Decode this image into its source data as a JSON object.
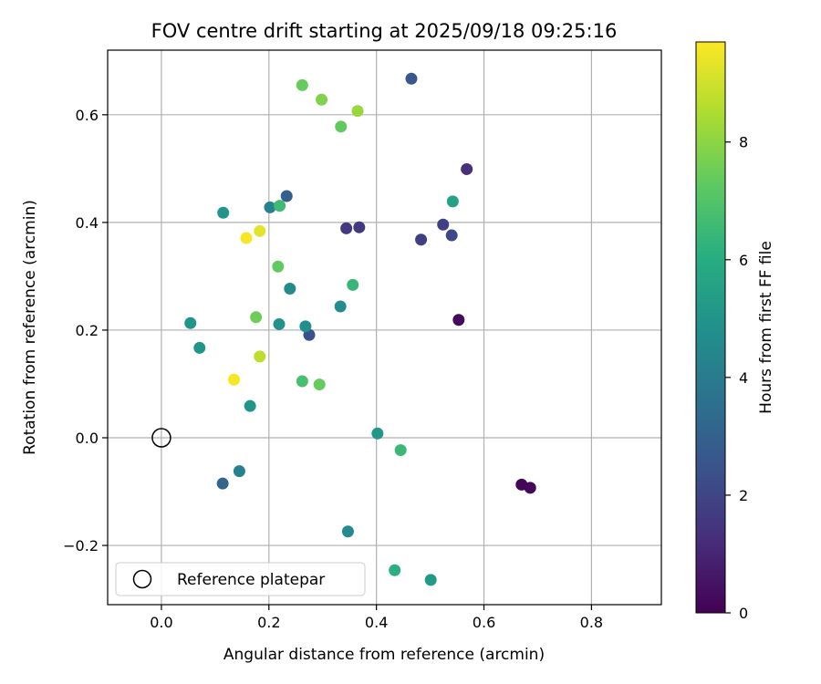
{
  "chart_data": {
    "type": "scatter",
    "title": "FOV centre drift starting at 2025/09/18 09:25:16",
    "xlabel": "Angular distance from reference (arcmin)",
    "ylabel": "Rotation from reference (arcmin)",
    "xlim": [
      -0.1,
      0.93
    ],
    "ylim": [
      -0.31,
      0.72
    ],
    "xticks": [
      0.0,
      0.2,
      0.4,
      0.6,
      0.8
    ],
    "xtick_labels": [
      "0.0",
      "0.2",
      "0.4",
      "0.6",
      "0.8"
    ],
    "yticks": [
      -0.2,
      0.0,
      0.2,
      0.4,
      0.6
    ],
    "ytick_labels": [
      "−0.2",
      "0.0",
      "0.2",
      "0.4",
      "0.6"
    ],
    "grid": true,
    "colormap": "viridis",
    "colorbar": {
      "label": "Hours from first FF file",
      "range": [
        0,
        9.7
      ],
      "ticks": [
        0,
        2,
        4,
        6,
        8
      ],
      "tick_labels": [
        "0",
        "2",
        "4",
        "6",
        "8"
      ]
    },
    "legend": {
      "label": "Reference platepar",
      "location": "lower-left"
    },
    "reference_point": {
      "x": 0.0,
      "y": 0.0
    },
    "points": [
      {
        "x": 0.67,
        "y": -0.087,
        "hours": 0.15
      },
      {
        "x": 0.686,
        "y": -0.093,
        "hours": 0.2
      },
      {
        "x": 0.553,
        "y": 0.219,
        "hours": 0.3
      },
      {
        "x": 0.568,
        "y": 0.499,
        "hours": 1.3
      },
      {
        "x": 0.344,
        "y": 0.389,
        "hours": 1.6
      },
      {
        "x": 0.368,
        "y": 0.391,
        "hours": 1.6
      },
      {
        "x": 0.483,
        "y": 0.368,
        "hours": 1.8
      },
      {
        "x": 0.524,
        "y": 0.396,
        "hours": 1.8
      },
      {
        "x": 0.54,
        "y": 0.376,
        "hours": 2.1
      },
      {
        "x": 0.275,
        "y": 0.191,
        "hours": 2.4
      },
      {
        "x": 0.465,
        "y": 0.667,
        "hours": 2.6
      },
      {
        "x": 0.233,
        "y": 0.449,
        "hours": 3.0
      },
      {
        "x": 0.114,
        "y": -0.085,
        "hours": 3.1
      },
      {
        "x": 0.145,
        "y": -0.062,
        "hours": 4.2
      },
      {
        "x": 0.347,
        "y": -0.174,
        "hours": 4.6
      },
      {
        "x": 0.202,
        "y": 0.428,
        "hours": 4.3
      },
      {
        "x": 0.239,
        "y": 0.277,
        "hours": 4.6
      },
      {
        "x": 0.333,
        "y": 0.244,
        "hours": 4.7
      },
      {
        "x": 0.268,
        "y": 0.207,
        "hours": 4.8
      },
      {
        "x": 0.219,
        "y": 0.211,
        "hours": 4.9
      },
      {
        "x": 0.115,
        "y": 0.418,
        "hours": 5.0
      },
      {
        "x": 0.054,
        "y": 0.213,
        "hours": 5.0
      },
      {
        "x": 0.071,
        "y": 0.167,
        "hours": 5.0
      },
      {
        "x": 0.165,
        "y": 0.059,
        "hours": 5.0
      },
      {
        "x": 0.402,
        "y": 0.008,
        "hours": 5.1
      },
      {
        "x": 0.501,
        "y": -0.264,
        "hours": 5.2
      },
      {
        "x": 0.542,
        "y": 0.439,
        "hours": 5.5
      },
      {
        "x": 0.434,
        "y": -0.246,
        "hours": 6.1
      },
      {
        "x": 0.356,
        "y": 0.284,
        "hours": 6.4
      },
      {
        "x": 0.445,
        "y": -0.023,
        "hours": 6.5
      },
      {
        "x": 0.22,
        "y": 0.431,
        "hours": 6.6
      },
      {
        "x": 0.262,
        "y": 0.105,
        "hours": 6.8
      },
      {
        "x": 0.217,
        "y": 0.318,
        "hours": 7.3
      },
      {
        "x": 0.334,
        "y": 0.578,
        "hours": 7.3
      },
      {
        "x": 0.294,
        "y": 0.099,
        "hours": 7.4
      },
      {
        "x": 0.262,
        "y": 0.655,
        "hours": 7.4
      },
      {
        "x": 0.176,
        "y": 0.224,
        "hours": 7.5
      },
      {
        "x": 0.298,
        "y": 0.628,
        "hours": 7.8
      },
      {
        "x": 0.365,
        "y": 0.607,
        "hours": 8.2
      },
      {
        "x": 0.183,
        "y": 0.151,
        "hours": 8.7
      },
      {
        "x": 0.183,
        "y": 0.384,
        "hours": 9.3
      },
      {
        "x": 0.158,
        "y": 0.371,
        "hours": 9.6
      },
      {
        "x": 0.135,
        "y": 0.108,
        "hours": 9.6
      }
    ]
  }
}
